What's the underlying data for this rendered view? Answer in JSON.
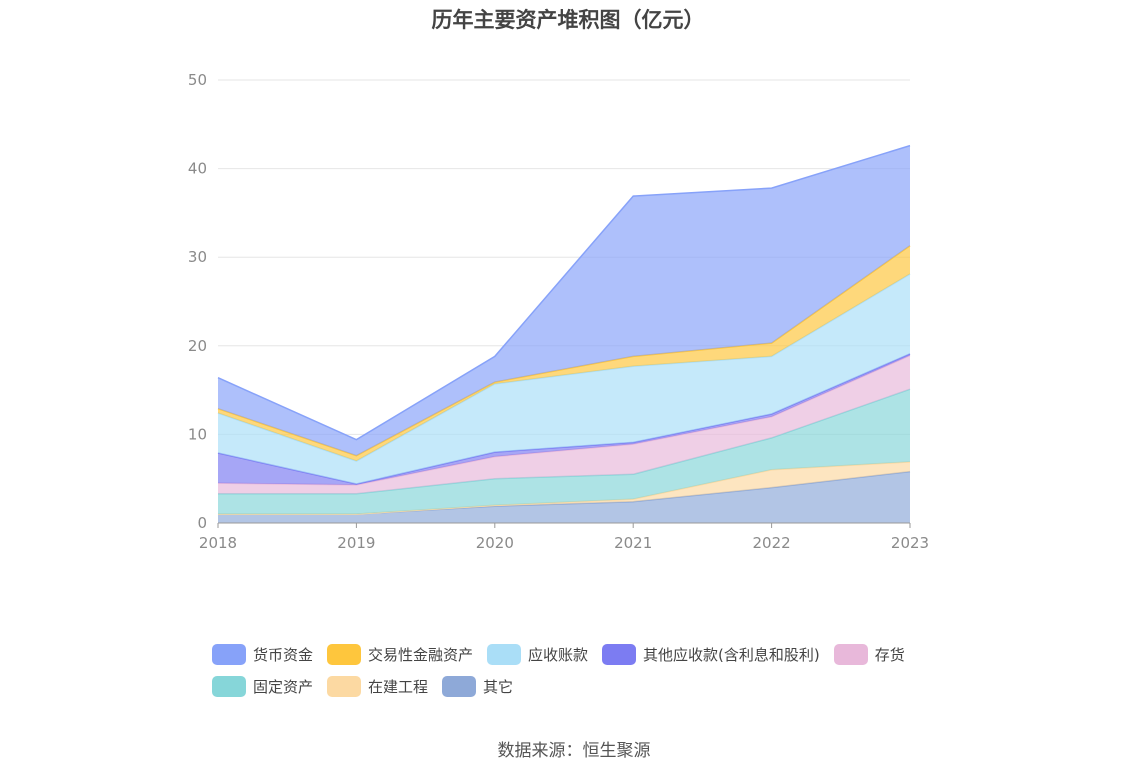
{
  "title": "历年主要资产堆积图（亿元）",
  "source": "数据来源：恒生聚源",
  "chart_data": {
    "type": "area",
    "stacked": true,
    "title": "历年主要资产堆积图（亿元）",
    "x": [
      "2018",
      "2019",
      "2020",
      "2021",
      "2022",
      "2023"
    ],
    "ylim": [
      0,
      50
    ],
    "yticks": [
      0,
      10,
      20,
      30,
      40,
      50
    ],
    "grid": true,
    "legend_position": "bottom",
    "series": [
      {
        "name": "其它",
        "color": "#8ea9d8",
        "values": [
          1.0,
          1.0,
          1.9,
          2.4,
          4.0,
          5.8
        ]
      },
      {
        "name": "在建工程",
        "color": "#fcd9a2",
        "values": [
          0.0,
          0.0,
          0.1,
          0.3,
          2.0,
          1.1
        ]
      },
      {
        "name": "固定资产",
        "color": "#86d6d9",
        "values": [
          2.3,
          2.3,
          3.0,
          2.8,
          3.6,
          8.2
        ]
      },
      {
        "name": "存货",
        "color": "#e8b8da",
        "values": [
          1.2,
          1.0,
          2.5,
          3.4,
          2.4,
          3.8
        ]
      },
      {
        "name": "其他应收款(含利息和股利)",
        "color": "#7c7cf2",
        "values": [
          3.4,
          0.1,
          0.5,
          0.2,
          0.3,
          0.2
        ]
      },
      {
        "name": "应收账款",
        "color": "#aadef7",
        "values": [
          4.5,
          2.6,
          7.7,
          8.6,
          6.5,
          9.0
        ]
      },
      {
        "name": "交易性金融资产",
        "color": "#fec63d",
        "values": [
          0.5,
          0.6,
          0.2,
          1.1,
          1.5,
          3.2
        ]
      },
      {
        "name": "货币资金",
        "color": "#87a2f9",
        "values": [
          3.5,
          1.8,
          2.9,
          18.1,
          17.5,
          11.3
        ]
      }
    ]
  },
  "legend": {
    "rows": [
      [
        {
          "label": "货币资金",
          "color": "#87a2f9"
        },
        {
          "label": "交易性金融资产",
          "color": "#fec63d"
        },
        {
          "label": "应收账款",
          "color": "#aadef7"
        },
        {
          "label": "其他应收款(含利息和股利)",
          "color": "#7c7cf2"
        },
        {
          "label": "存货",
          "color": "#e8b8da"
        }
      ],
      [
        {
          "label": "固定资产",
          "color": "#86d6d9"
        },
        {
          "label": "在建工程",
          "color": "#fcd9a2"
        },
        {
          "label": "其它",
          "color": "#8ea9d8"
        }
      ]
    ]
  }
}
